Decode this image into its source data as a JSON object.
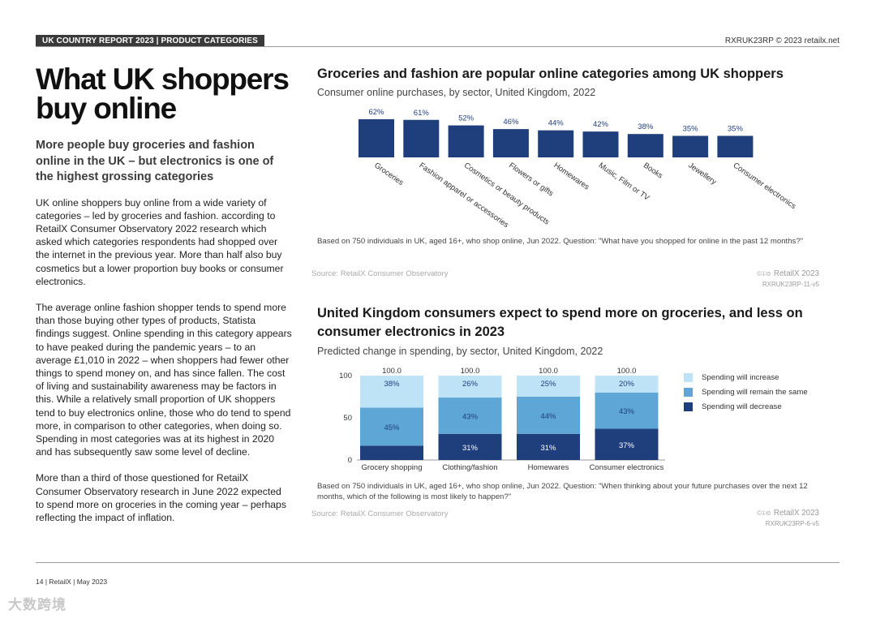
{
  "header": {
    "section_label": "UK COUNTRY REPORT 2023 | PRODUCT CATEGORIES",
    "doc_ref": "RXRUK23RP © 2023 retailx.net"
  },
  "article": {
    "title_line1": "What UK shoppers",
    "title_line2": "buy online",
    "subhead": "More people buy groceries and fashion online in the UK – but electronics is one of the highest grossing categories",
    "paragraph1": "UK online shoppers buy online from a wide variety of categories – led by groceries and fashion. according to RetailX Consumer Observatory 2022 research which asked which categories respondents had shopped over the internet in the previous year. More than half also buy cosmetics but a lower proportion buy books or consumer electronics.",
    "paragraph2": "The average online fashion shopper tends to spend more than those buying other types of products, Statista findings suggest. Online spending in this category appears to have peaked during the pandemic years – to an average £1,010 in 2022 – when shoppers had fewer other things to spend money on, and has since fallen. The cost of living and sustainability awareness may be factors in this. While a relatively small proportion of UK shoppers tend to buy electronics online, those who do tend to spend more, in comparison to other categories, when doing so. Spending in most categories was at its highest in 2020 and has subsequently saw some level of decline.",
    "paragraph3": "More than a third of those questioned for RetailX Consumer Observatory research in June 2022 expected to spend more on groceries in the coming year – perhaps reflecting the impact of inflation."
  },
  "chart1_text": {
    "note": "Based on 750 individuals in UK, aged 16+, who shop online, Jun 2022. Question: \"What have you shopped for online in the past 12 months?\"",
    "source": "Source: RetailX Consumer Observatory",
    "credit": "RetailX 2023",
    "credit_id": "RXRUK23RP-11-v5",
    "cc": "©①⊜"
  },
  "chart2_text": {
    "note": "Based on 750 individuals in UK, aged 16+, who shop online, Jun 2022. Question: \"When thinking about your future purchases over the next 12 months, which of the following is most likely to happen?\"",
    "source": "Source: RetailX Consumer Observatory",
    "credit": "RetailX 2023",
    "credit_id": "RXRUK23RP-6-v5",
    "cc": "©①⊜"
  },
  "chart_data": [
    {
      "type": "bar",
      "title": "Groceries and fashion are popular online categories among UK shoppers",
      "subtitle": "Consumer online purchases, by sector, United Kingdom, 2022",
      "categories": [
        "Groceries",
        "Fashion apparel or accessories",
        "Cosmetics or beauty products",
        "Flowers or gifts",
        "Homewares",
        "Music, Film or TV",
        "Books",
        "Jewellery",
        "Consumer electronics"
      ],
      "values": [
        62,
        61,
        52,
        46,
        44,
        42,
        38,
        35,
        35
      ],
      "value_labels": [
        "62%",
        "61%",
        "52%",
        "46%",
        "44%",
        "42%",
        "38%",
        "35%",
        "35%"
      ],
      "unit": "%",
      "color": "#1f3e7c",
      "ylim": [
        0,
        62
      ]
    },
    {
      "type": "bar",
      "stacked": true,
      "title": "United Kingdom consumers expect to spend more on groceries, and less on consumer electronics in 2023",
      "title_line1": "United Kingdom consumers expect to spend more on groceries, and less on",
      "title_line2": "consumer electronics in 2023",
      "subtitle": "Predicted change in spending, by sector, United Kingdom, 2022",
      "categories": [
        "Grocery shopping",
        "Clothing/fashion",
        "Homewares",
        "Consumer electronics"
      ],
      "totals": [
        "100.0",
        "100.0",
        "100.0",
        "100.0"
      ],
      "yticks": [
        0,
        50,
        100
      ],
      "ylim": [
        0,
        100
      ],
      "series": [
        {
          "name": "Spending will decrease",
          "values": [
            17,
            31,
            31,
            37
          ],
          "labels": [
            "",
            "31%",
            "31%",
            "37%"
          ],
          "color": "#1f3e7c",
          "text_color": "#ffffff"
        },
        {
          "name": "Spending will remain the same",
          "values": [
            45,
            43,
            44,
            43
          ],
          "labels": [
            "45%",
            "43%",
            "44%",
            "43%"
          ],
          "color": "#5ea6d6",
          "text_color": "#1f3e7c"
        },
        {
          "name": "Spending will increase",
          "values": [
            38,
            26,
            25,
            20
          ],
          "labels": [
            "38%",
            "26%",
            "25%",
            "20%"
          ],
          "color": "#bfe3f6",
          "text_color": "#1f3e7c"
        }
      ],
      "legend": [
        "Spending will increase",
        "Spending will remain the same",
        "Spending will decrease"
      ]
    }
  ],
  "footer": {
    "page": "14 | RetailX | May 2023",
    "watermark": "大数跨境"
  }
}
